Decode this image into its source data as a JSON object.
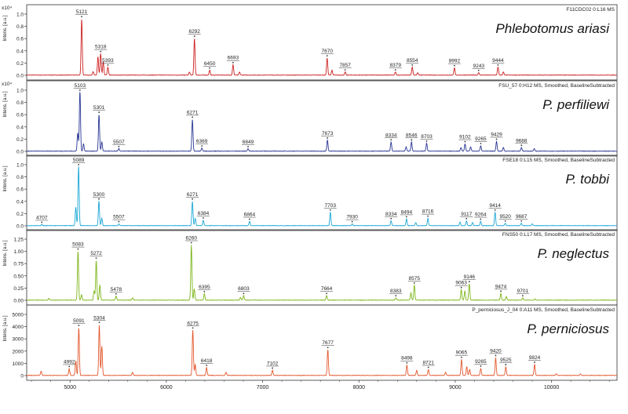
{
  "chart_data": {
    "type": "line",
    "xlabel": "",
    "xlim": [
      4550,
      10680
    ],
    "x_ticks": [
      {
        "value": 5000,
        "label": "5000"
      },
      {
        "value": 6000,
        "label": "6000"
      },
      {
        "value": 7000,
        "label": "7000"
      },
      {
        "value": 8000,
        "label": "8000"
      },
      {
        "value": 9000,
        "label": "9000"
      },
      {
        "value": 10000,
        "label": "10000"
      }
    ],
    "panels": [
      {
        "ylabel": "Intens. [a.u.]",
        "yexp": "x10⁴",
        "header": "F11CDC02 0:L16 MS",
        "species": "Phlebotomus ariasi",
        "color": "#cc2020",
        "ylim": [
          0,
          1.0
        ],
        "y_ticks": [
          "0.0",
          "0.2",
          "0.4",
          "0.6",
          "0.8",
          "1.0"
        ],
        "peaks": [
          {
            "x": 5121,
            "y": 0.92,
            "label": "5121"
          },
          {
            "x": 5318,
            "y": 0.35,
            "label": "5318"
          },
          {
            "x": 5393,
            "y": 0.13,
            "label": "5393"
          },
          {
            "x": 6292,
            "y": 0.6,
            "label": "6292"
          },
          {
            "x": 6450,
            "y": 0.08,
            "label": "6450"
          },
          {
            "x": 6693,
            "y": 0.17,
            "label": "6693"
          },
          {
            "x": 7670,
            "y": 0.28,
            "label": "7670"
          },
          {
            "x": 7857,
            "y": 0.05,
            "label": "7857"
          },
          {
            "x": 8379,
            "y": 0.05,
            "label": "8379"
          },
          {
            "x": 8554,
            "y": 0.13,
            "label": "8554"
          },
          {
            "x": 8992,
            "y": 0.12,
            "label": "8992"
          },
          {
            "x": 9243,
            "y": 0.04,
            "label": "9243"
          },
          {
            "x": 9444,
            "y": 0.13,
            "label": "9444"
          }
        ],
        "minor": [
          [
            5290,
            0.3
          ],
          [
            5345,
            0.22
          ],
          [
            5240,
            0.06
          ],
          [
            6760,
            0.05
          ],
          [
            7720,
            0.08
          ],
          [
            8610,
            0.04
          ],
          [
            9500,
            0.05
          ],
          [
            6240,
            0.05
          ]
        ]
      },
      {
        "ylabel": "Intens. [a.u.]",
        "yexp": "x10⁴",
        "header": "FSU_57 0:H12 MS, Smoothed, BaselineSubtracted",
        "species": "P. perfiliewi",
        "color": "#283593",
        "ylim": [
          0,
          1.0
        ],
        "y_ticks": [
          "0.0",
          "0.2",
          "0.4",
          "0.6",
          "0.8",
          "1.0"
        ],
        "peaks": [
          {
            "x": 5103,
            "y": 0.98,
            "label": "5103"
          },
          {
            "x": 5301,
            "y": 0.6,
            "label": "5301"
          },
          {
            "x": 5507,
            "y": 0.04,
            "label": "5507"
          },
          {
            "x": 6271,
            "y": 0.52,
            "label": "6271"
          },
          {
            "x": 6369,
            "y": 0.05,
            "label": "6369"
          },
          {
            "x": 6849,
            "y": 0.04,
            "label": "6849"
          },
          {
            "x": 7673,
            "y": 0.18,
            "label": "7673"
          },
          {
            "x": 8334,
            "y": 0.15,
            "label": "8334"
          },
          {
            "x": 8546,
            "y": 0.15,
            "label": "8546"
          },
          {
            "x": 8703,
            "y": 0.13,
            "label": "8703"
          },
          {
            "x": 9102,
            "y": 0.12,
            "label": "9102"
          },
          {
            "x": 9265,
            "y": 0.09,
            "label": "9265"
          },
          {
            "x": 9429,
            "y": 0.16,
            "label": "9429"
          },
          {
            "x": 9688,
            "y": 0.06,
            "label": "9688"
          }
        ],
        "minor": [
          [
            5080,
            0.3
          ],
          [
            5140,
            0.12
          ],
          [
            5330,
            0.15
          ],
          [
            8490,
            0.07
          ],
          [
            9060,
            0.06
          ],
          [
            9160,
            0.07
          ],
          [
            9500,
            0.06
          ],
          [
            9820,
            0.04
          ]
        ]
      },
      {
        "ylabel": "Intens. [a.u.]",
        "yexp": "",
        "header": "FSE18 0:L15 MS, Smoothed, BaselineSubtracted",
        "species": "P. tobbi",
        "color": "#1aa6d6",
        "ylim": [
          0,
          1.0
        ],
        "y_ticks": [
          "0.0",
          "0.2",
          "0.4",
          "0.6",
          "0.8",
          "1.0"
        ],
        "peaks": [
          {
            "x": 4707,
            "y": 0.02,
            "label": "4707"
          },
          {
            "x": 5089,
            "y": 0.98,
            "label": "5089"
          },
          {
            "x": 5300,
            "y": 0.4,
            "label": "5300"
          },
          {
            "x": 5507,
            "y": 0.03,
            "label": "5507"
          },
          {
            "x": 6271,
            "y": 0.4,
            "label": "6271"
          },
          {
            "x": 6384,
            "y": 0.09,
            "label": "6384"
          },
          {
            "x": 6864,
            "y": 0.07,
            "label": "6864"
          },
          {
            "x": 7703,
            "y": 0.22,
            "label": "7703"
          },
          {
            "x": 7930,
            "y": 0.03,
            "label": "7930"
          },
          {
            "x": 8334,
            "y": 0.08,
            "label": "8334"
          },
          {
            "x": 8494,
            "y": 0.11,
            "label": "8494"
          },
          {
            "x": 8716,
            "y": 0.12,
            "label": "8716"
          },
          {
            "x": 9117,
            "y": 0.08,
            "label": "9117"
          },
          {
            "x": 9264,
            "y": 0.07,
            "label": "9264"
          },
          {
            "x": 9414,
            "y": 0.22,
            "label": "9414"
          },
          {
            "x": 9520,
            "y": 0.04,
            "label": "9520"
          },
          {
            "x": 9687,
            "y": 0.04,
            "label": "9687"
          }
        ],
        "minor": [
          [
            5060,
            0.3
          ],
          [
            5330,
            0.12
          ],
          [
            6300,
            0.12
          ],
          [
            8590,
            0.05
          ],
          [
            9050,
            0.06
          ],
          [
            9180,
            0.05
          ],
          [
            9800,
            0.03
          ]
        ]
      },
      {
        "ylabel": "Intens. [a.u.]",
        "yexp": "",
        "header": "FNS50 0:L17 MS, Smoothed, BaselineSubtracted",
        "species": "P. neglectus",
        "color": "#7cb518",
        "ylim": [
          0,
          1.35
        ],
        "y_ticks": [
          "0.00",
          "0.25",
          "0.50",
          "0.75",
          "1.00",
          "1.25"
        ],
        "peaks": [
          {
            "x": 5083,
            "y": 1.08,
            "label": "5083"
          },
          {
            "x": 5272,
            "y": 0.88,
            "label": "5272"
          },
          {
            "x": 5478,
            "y": 0.09,
            "label": "5478"
          },
          {
            "x": 6260,
            "y": 1.22,
            "label": "6260"
          },
          {
            "x": 6395,
            "y": 0.14,
            "label": "6395"
          },
          {
            "x": 6803,
            "y": 0.1,
            "label": "6803"
          },
          {
            "x": 7664,
            "y": 0.1,
            "label": "7664"
          },
          {
            "x": 8383,
            "y": 0.05,
            "label": "8383"
          },
          {
            "x": 8575,
            "y": 0.33,
            "label": "8575"
          },
          {
            "x": 9063,
            "y": 0.23,
            "label": "9063"
          },
          {
            "x": 9146,
            "y": 0.36,
            "label": "9146"
          },
          {
            "x": 9474,
            "y": 0.15,
            "label": "9474"
          },
          {
            "x": 9701,
            "y": 0.05,
            "label": "9701"
          }
        ],
        "minor": [
          [
            5310,
            0.33
          ],
          [
            5250,
            0.2
          ],
          [
            5120,
            0.12
          ],
          [
            6290,
            0.25
          ],
          [
            6770,
            0.06
          ],
          [
            8540,
            0.16
          ],
          [
            9100,
            0.2
          ],
          [
            9530,
            0.08
          ],
          [
            9830,
            0.03
          ],
          [
            4780,
            0.04
          ],
          [
            5650,
            0.05
          ]
        ]
      },
      {
        "ylabel": "Intens. [a.u.]",
        "yexp": "",
        "header": "P_perniciosus_J_04 0:A11 MS, Smoothed, BaselineSubtracted",
        "species": "P. perniciosus",
        "color": "#e2572c",
        "ylim": [
          0,
          5000
        ],
        "y_ticks": [
          "0",
          "1000",
          "2000",
          "3000",
          "4000",
          "5000"
        ],
        "peaks": [
          {
            "x": 4992,
            "y": 550,
            "label": "4992"
          },
          {
            "x": 5091,
            "y": 3900,
            "label": "5091"
          },
          {
            "x": 5304,
            "y": 4150,
            "label": "5304"
          },
          {
            "x": 6275,
            "y": 3700,
            "label": "6275"
          },
          {
            "x": 6418,
            "y": 650,
            "label": "6418"
          },
          {
            "x": 7102,
            "y": 420,
            "label": "7102"
          },
          {
            "x": 7677,
            "y": 2100,
            "label": "7677"
          },
          {
            "x": 8498,
            "y": 850,
            "label": "8498"
          },
          {
            "x": 8721,
            "y": 480,
            "label": "8721"
          },
          {
            "x": 9065,
            "y": 1300,
            "label": "9065"
          },
          {
            "x": 9265,
            "y": 580,
            "label": "9265"
          },
          {
            "x": 9420,
            "y": 1450,
            "label": "9420"
          },
          {
            "x": 9525,
            "y": 700,
            "label": "9525"
          },
          {
            "x": 9824,
            "y": 900,
            "label": "9824"
          }
        ],
        "minor": [
          [
            5330,
            2400
          ],
          [
            5060,
            1200
          ],
          [
            4700,
            350
          ],
          [
            5650,
            250
          ],
          [
            6300,
            900
          ],
          [
            6620,
            250
          ],
          [
            8600,
            400
          ],
          [
            9120,
            700
          ],
          [
            8900,
            250
          ],
          [
            9150,
            500
          ],
          [
            10050,
            150
          ],
          [
            10300,
            120
          ]
        ]
      }
    ]
  }
}
